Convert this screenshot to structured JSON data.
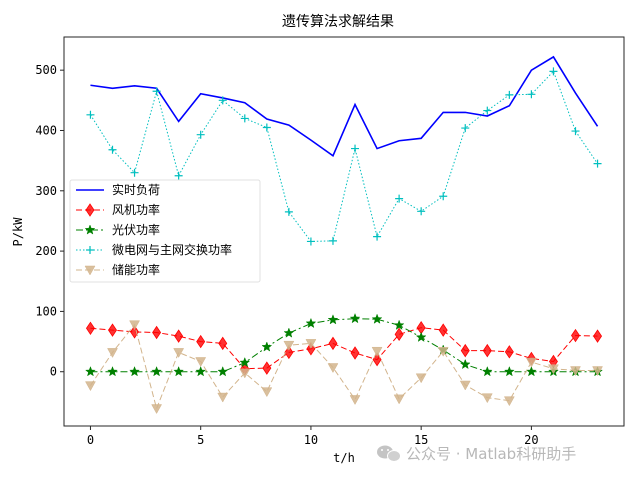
{
  "chart_data": {
    "type": "line",
    "title": "遗传算法求解结果",
    "xlabel": "t/h",
    "ylabel": "P/kW",
    "xlim": [
      -1.2,
      24.2
    ],
    "ylim": [
      -90,
      555
    ],
    "xticks": [
      0,
      5,
      10,
      15,
      20
    ],
    "yticks": [
      0,
      100,
      200,
      300,
      400,
      500
    ],
    "grid": false,
    "legend_position": "center-left",
    "x": [
      0,
      1,
      2,
      3,
      4,
      5,
      6,
      7,
      8,
      9,
      10,
      11,
      12,
      13,
      14,
      15,
      16,
      17,
      18,
      19,
      20,
      21,
      22,
      23
    ],
    "series": [
      {
        "name": "实时负荷",
        "color": "#0000ff",
        "style": "solid",
        "marker": "none",
        "values": [
          475,
          470,
          474,
          470,
          415,
          461,
          454,
          446,
          419,
          409,
          384,
          358,
          443,
          370,
          383,
          387,
          430,
          430,
          424,
          441,
          500,
          522,
          462,
          407
        ]
      },
      {
        "name": "风机功率",
        "color": "#ff0000",
        "style": "dashed",
        "marker": "diamond",
        "values": [
          72,
          69,
          66,
          65,
          59,
          50,
          47,
          5,
          6,
          32,
          38,
          47,
          31,
          20,
          62,
          73,
          69,
          35,
          35,
          33,
          22,
          17,
          60,
          59
        ]
      },
      {
        "name": "光伏功率",
        "color": "#008000",
        "style": "dashdot",
        "marker": "star",
        "values": [
          0,
          0,
          0,
          0,
          0,
          0,
          0,
          15,
          41,
          64,
          80,
          86,
          88,
          87,
          77,
          57,
          36,
          12,
          0,
          0,
          0,
          0,
          0,
          0
        ]
      },
      {
        "name": "微电网与主网交换功率",
        "color": "#00bfbf",
        "style": "dotted",
        "marker": "plus",
        "values": [
          426,
          368,
          330,
          465,
          325,
          393,
          450,
          420,
          405,
          265,
          216,
          217,
          370,
          224,
          287,
          266,
          291,
          404,
          433,
          459,
          460,
          498,
          399,
          345
        ]
      },
      {
        "name": "储能功率",
        "color": "#d2b48c",
        "style": "dashed",
        "marker": "triangle-down",
        "values": [
          -23,
          32,
          78,
          -61,
          32,
          17,
          -42,
          -2,
          -33,
          44,
          47,
          7,
          -46,
          34,
          -45,
          -10,
          34,
          -22,
          -43,
          -48,
          16,
          5,
          2,
          2
        ]
      }
    ]
  },
  "watermark": {
    "icon": "wechat-icon",
    "text": "公众号 · Matlab科研助手"
  }
}
